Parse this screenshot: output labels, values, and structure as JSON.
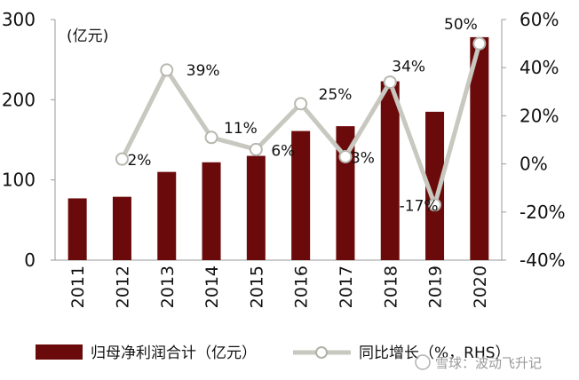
{
  "chart_data": {
    "type": "bar",
    "categories": [
      "2011",
      "2012",
      "2013",
      "2014",
      "2015",
      "2016",
      "2017",
      "2018",
      "2019",
      "2020"
    ],
    "series": [
      {
        "name": "归母净利润合计（亿元）",
        "type": "bar",
        "axis": "left",
        "color": "#6b0a0a",
        "values": [
          77,
          79,
          110,
          122,
          130,
          161,
          167,
          223,
          185,
          278
        ]
      },
      {
        "name": "同比增长（%，RHS）",
        "type": "line",
        "axis": "right",
        "color": "#c8c8c0",
        "values": [
          2,
          39,
          11,
          6,
          25,
          3,
          34,
          -17,
          50
        ],
        "x": [
          "2012",
          "2013",
          "2014",
          "2015",
          "2016",
          "2017",
          "2018",
          "2019",
          "2020"
        ],
        "labels": [
          "2%",
          "39%",
          "11%",
          "6%",
          "25%",
          "3%",
          "34%",
          "-17%",
          "50%"
        ]
      }
    ],
    "y_left": {
      "ylim": [
        0,
        300
      ],
      "ticks": [
        "0",
        "100",
        "200",
        "300"
      ],
      "unit": "(亿元)"
    },
    "y_right": {
      "ylim": [
        -40,
        60
      ],
      "ticks": [
        "-40%",
        "-20%",
        "0%",
        "20%",
        "40%",
        "60%"
      ]
    },
    "legend": {
      "placement": "bottom",
      "entries": [
        "归母净利润合计（亿元）",
        "同比增长（%，RHS）"
      ]
    },
    "grid": false
  },
  "watermark": "雪球：波动飞升记"
}
